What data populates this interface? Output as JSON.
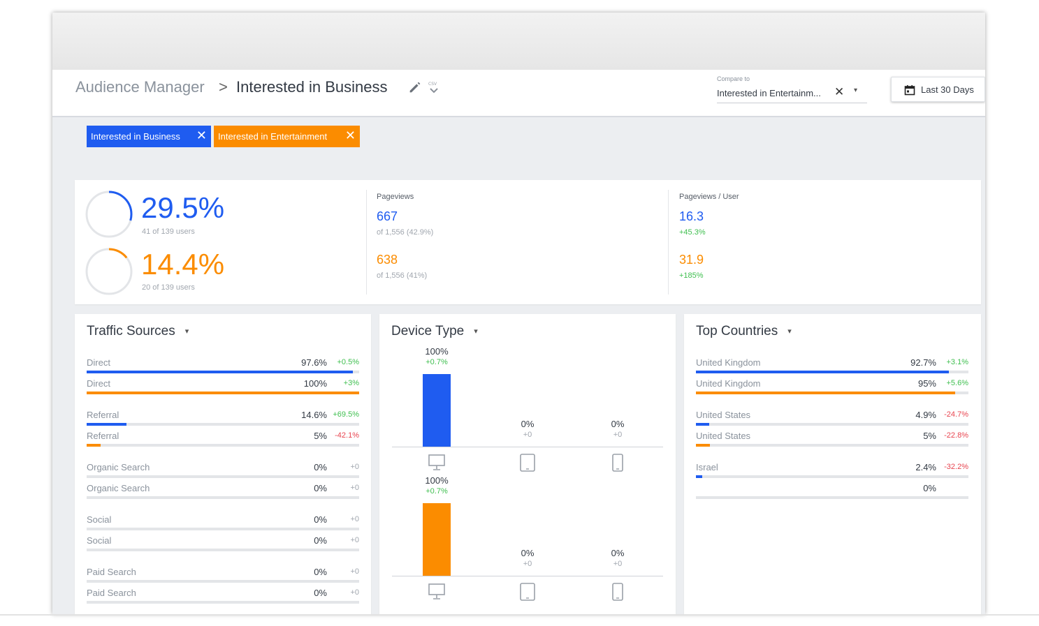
{
  "header": {
    "breadcrumb_root": "Audience Manager",
    "breadcrumb_sep": ">",
    "breadcrumb_current": "Interested in Business",
    "compare_label": "Compare to",
    "compare_value": "Interested in Entertainm...",
    "date_label": "Last 30 Days"
  },
  "chips": [
    {
      "label": "Interested in Business",
      "color": "#1f5cf0"
    },
    {
      "label": "Interested in Entertainment",
      "color": "#fb8c00"
    }
  ],
  "summary": {
    "segment1": {
      "pct": "29.5%",
      "users": "41 of 139 users",
      "fraction": 0.295
    },
    "segment2": {
      "pct": "14.4%",
      "users": "20 of 139 users",
      "fraction": 0.144
    },
    "pageviews": {
      "label": "Pageviews",
      "v1": "667",
      "v1_sub": "of 1,556 (42.9%)",
      "v2": "638",
      "v2_sub": "of 1,556 (41%)"
    },
    "pageviews_user": {
      "label": "Pageviews / User",
      "v1": "16.3",
      "v1_sub": "+45.3%",
      "v2": "31.9",
      "v2_sub": "+185%"
    }
  },
  "traffic": {
    "title": "Traffic Sources",
    "rows": [
      {
        "name": "Direct",
        "pct": "97.6%",
        "chg": "+0.5%",
        "chg_color": "#3fbf4f",
        "value": 97.6,
        "color": "#1f5cf0"
      },
      {
        "name": "Direct",
        "pct": "100%",
        "chg": "+3%",
        "chg_color": "#3fbf4f",
        "value": 100,
        "color": "#fb8c00"
      },
      {
        "name": "Referral",
        "pct": "14.6%",
        "chg": "+69.5%",
        "chg_color": "#3fbf4f",
        "value": 14.6,
        "color": "#1f5cf0"
      },
      {
        "name": "Referral",
        "pct": "5%",
        "chg": "-42.1%",
        "chg_color": "#e8444f",
        "value": 5,
        "color": "#fb8c00"
      },
      {
        "name": "Organic Search",
        "pct": "0%",
        "chg": "+0",
        "chg_color": "#a0a6ae",
        "value": 0,
        "color": "#1f5cf0"
      },
      {
        "name": "Organic Search",
        "pct": "0%",
        "chg": "+0",
        "chg_color": "#a0a6ae",
        "value": 0,
        "color": "#fb8c00"
      },
      {
        "name": "Social",
        "pct": "0%",
        "chg": "+0",
        "chg_color": "#a0a6ae",
        "value": 0,
        "color": "#1f5cf0"
      },
      {
        "name": "Social",
        "pct": "0%",
        "chg": "+0",
        "chg_color": "#a0a6ae",
        "value": 0,
        "color": "#fb8c00"
      },
      {
        "name": "Paid Search",
        "pct": "0%",
        "chg": "+0",
        "chg_color": "#a0a6ae",
        "value": 0,
        "color": "#1f5cf0"
      },
      {
        "name": "Paid Search",
        "pct": "0%",
        "chg": "+0",
        "chg_color": "#a0a6ae",
        "value": 0,
        "color": "#fb8c00"
      }
    ]
  },
  "device": {
    "title": "Device Type",
    "groups": [
      {
        "color": "#1f5cf0",
        "bars": [
          {
            "device": "desktop",
            "pct": "100%",
            "chg": "+0.7%",
            "chg_color": "#3fbf4f",
            "value": 100
          },
          {
            "device": "tablet",
            "pct": "0%",
            "chg": "+0",
            "chg_color": "#a0a6ae",
            "value": 0
          },
          {
            "device": "mobile",
            "pct": "0%",
            "chg": "+0",
            "chg_color": "#a0a6ae",
            "value": 0
          }
        ]
      },
      {
        "color": "#fb8c00",
        "bars": [
          {
            "device": "desktop",
            "pct": "100%",
            "chg": "+0.7%",
            "chg_color": "#3fbf4f",
            "value": 100
          },
          {
            "device": "tablet",
            "pct": "0%",
            "chg": "+0",
            "chg_color": "#a0a6ae",
            "value": 0
          },
          {
            "device": "mobile",
            "pct": "0%",
            "chg": "+0",
            "chg_color": "#a0a6ae",
            "value": 0
          }
        ]
      }
    ]
  },
  "countries": {
    "title": "Top Countries",
    "rows": [
      {
        "name": "United Kingdom",
        "pct": "92.7%",
        "chg": "+3.1%",
        "chg_color": "#3fbf4f",
        "value": 92.7,
        "color": "#1f5cf0"
      },
      {
        "name": "United Kingdom",
        "pct": "95%",
        "chg": "+5.6%",
        "chg_color": "#3fbf4f",
        "value": 95,
        "color": "#fb8c00"
      },
      {
        "name": "United States",
        "pct": "4.9%",
        "chg": "-24.7%",
        "chg_color": "#e8444f",
        "value": 4.9,
        "color": "#1f5cf0"
      },
      {
        "name": "United States",
        "pct": "5%",
        "chg": "-22.8%",
        "chg_color": "#e8444f",
        "value": 5,
        "color": "#fb8c00"
      },
      {
        "name": "Israel",
        "pct": "2.4%",
        "chg": "-32.2%",
        "chg_color": "#e8444f",
        "value": 2.4,
        "color": "#1f5cf0"
      },
      {
        "name": "",
        "pct": "0%",
        "chg": "",
        "chg_color": "#a0a6ae",
        "value": 0,
        "color": "#fb8c00"
      }
    ]
  }
}
